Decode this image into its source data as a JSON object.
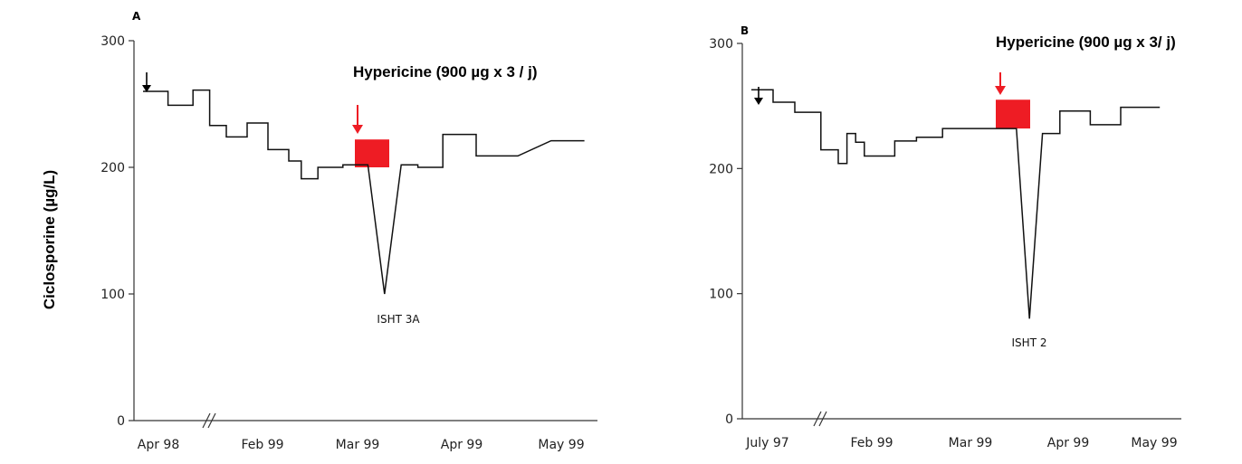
{
  "y_axis_label": "Ciclosporine (µg/L)",
  "chart_data": [
    {
      "type": "line",
      "panel_label": "A",
      "ylim": [
        0,
        300
      ],
      "yticks": [
        0,
        100,
        200,
        300
      ],
      "x_tick_labels": [
        "Apr 98",
        "Feb 99",
        "Mar 99",
        "Apr 99",
        "May 99"
      ],
      "axis_break": true,
      "annotation": "Hypericine (900 µg x 3 / j)",
      "event_label": "ISHT 3A",
      "event_min": 100,
      "treatment_level": [
        200,
        222
      ],
      "series": [
        {
          "x": [
            0,
            0.6,
            0.6,
            1.2,
            1.2,
            1.6,
            1.6,
            2.0,
            2.0,
            2.5,
            2.5,
            3.0,
            3.0,
            3.5,
            3.5,
            3.8,
            3.8,
            4.2,
            4.2,
            4.8,
            4.8,
            5.4,
            5.8,
            6.2,
            6.6,
            6.6,
            7.2,
            7.2,
            8.0,
            8.0,
            9.0,
            9.0,
            9.8,
            9.8,
            10.6
          ],
          "y": [
            260,
            260,
            249,
            249,
            261,
            261,
            233,
            233,
            224,
            224,
            235,
            235,
            214,
            214,
            205,
            205,
            191,
            191,
            200,
            200,
            202,
            202,
            100,
            202,
            202,
            200,
            200,
            226,
            226,
            209,
            209,
            209,
            221,
            221,
            221
          ]
        }
      ]
    },
    {
      "type": "line",
      "panel_label": "B",
      "ylim": [
        0,
        300
      ],
      "yticks": [
        0,
        100,
        200,
        300
      ],
      "x_tick_labels": [
        "July 97",
        "Feb 99",
        "Mar 99",
        "Apr 99",
        "May 99"
      ],
      "axis_break": true,
      "annotation": "Hypericine (900 µg x 3/ j)",
      "event_label": "ISHT 2",
      "event_min": 80,
      "treatment_level": [
        232,
        255
      ],
      "series": [
        {
          "x": [
            0,
            0.5,
            0.5,
            1.0,
            1.0,
            1.6,
            1.6,
            2.0,
            2.0,
            2.2,
            2.2,
            2.4,
            2.4,
            2.6,
            2.6,
            2.8,
            2.8,
            3.3,
            3.3,
            3.8,
            3.8,
            4.4,
            4.4,
            5.1,
            5.1,
            6.1,
            6.4,
            6.7,
            7.1,
            7.1,
            7.8,
            7.8,
            8.5,
            8.5,
            9.4
          ],
          "y": [
            263,
            263,
            253,
            253,
            245,
            245,
            215,
            215,
            204,
            204,
            228,
            228,
            221,
            221,
            210,
            210,
            210,
            210,
            222,
            222,
            225,
            225,
            232,
            232,
            232,
            232,
            80,
            228,
            228,
            246,
            246,
            235,
            235,
            249,
            249
          ]
        }
      ]
    }
  ]
}
